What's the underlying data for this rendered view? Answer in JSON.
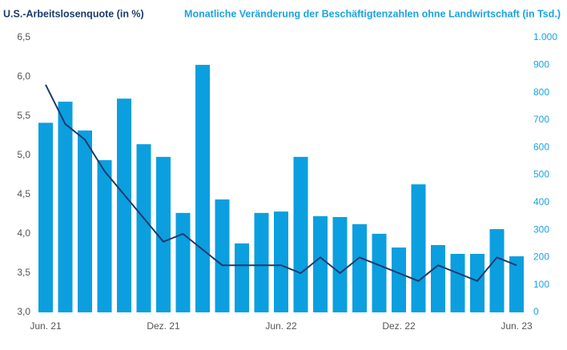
{
  "chart_data": {
    "type": "bar-line",
    "ylabel": "U.S.-Arbeitslosenquote (in %)",
    "y2label": "Monatliche Veränderung der Beschäftigtenzahlen ohne Landwirtschaft (in Tsd.)",
    "categories": [
      "Jun. 21",
      null,
      null,
      null,
      null,
      null,
      "Dez. 21",
      null,
      null,
      null,
      null,
      null,
      "Jun. 22",
      null,
      null,
      null,
      null,
      null,
      "Dez. 22",
      null,
      null,
      null,
      null,
      null,
      "Jun. 23"
    ],
    "series": [
      {
        "type": "bar",
        "axis": "y2",
        "color": "#0b9fdf",
        "values": [
          690,
          767,
          662,
          554,
          778,
          612,
          566,
          362,
          901,
          411,
          251,
          362,
          367,
          566,
          350,
          347,
          321,
          286,
          236,
          466,
          245,
          213,
          213,
          303,
          204
        ]
      },
      {
        "type": "line",
        "axis": "y",
        "color": "#1c3a6b",
        "values": [
          5.9,
          5.4,
          5.2,
          4.8,
          4.5,
          4.2,
          3.9,
          4.0,
          3.8,
          3.6,
          3.6,
          3.6,
          3.6,
          3.5,
          3.7,
          3.5,
          3.7,
          3.6,
          3.5,
          3.4,
          3.6,
          3.5,
          3.4,
          3.7,
          3.6
        ]
      }
    ],
    "ylim": [
      3.0,
      6.5
    ],
    "yticks": [
      {
        "value": 3.0,
        "label": "3,0"
      },
      {
        "value": 3.5,
        "label": "3,5"
      },
      {
        "value": 4.0,
        "label": "4,0"
      },
      {
        "value": 4.5,
        "label": "4,5"
      },
      {
        "value": 5.0,
        "label": "5,0"
      },
      {
        "value": 5.5,
        "label": "5,5"
      },
      {
        "value": 6.0,
        "label": "6,0"
      },
      {
        "value": 6.5,
        "label": "6,5"
      }
    ],
    "y2lim": [
      0,
      1000
    ],
    "y2ticks": [
      0,
      100,
      200,
      300,
      400,
      500,
      600,
      700,
      800,
      900,
      {
        "value": 1000,
        "label": "1.000"
      }
    ],
    "ylabel_color": "#1c3a6b",
    "y2label_color": "#1aa3e0"
  }
}
